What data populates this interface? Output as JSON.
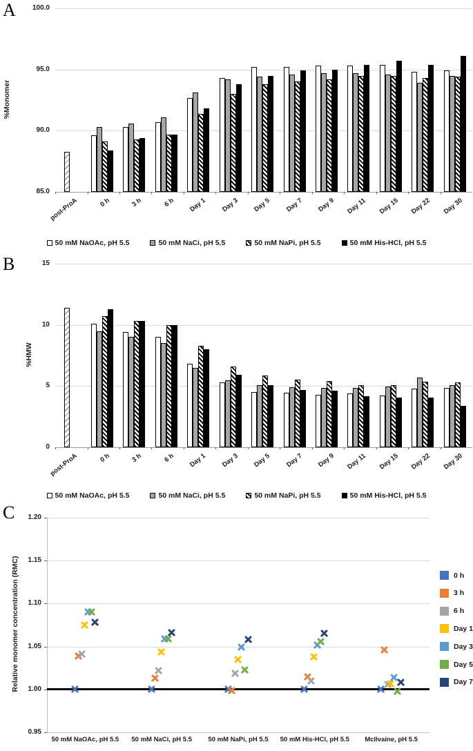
{
  "figure": {
    "background": "#ffffff",
    "grid_color": "#d9d9d9",
    "axis_color": "#9b9b9b",
    "baseline_color": "#000000"
  },
  "panels": {
    "A": {
      "label": "A",
      "chart_data": {
        "type": "bar",
        "title": "",
        "xlabel": "",
        "ylabel": "%Monomer",
        "ylim": [
          85.0,
          100.0
        ],
        "ytick_step": 5.0,
        "ytick_decimals": 1,
        "grid": true,
        "legend_position": "bottom",
        "categories": [
          "post-ProA",
          "0 h",
          "3 h",
          "6 h",
          "Day 1",
          "Day 3",
          "Day 5",
          "Day 7",
          "Day 9",
          "Day 11",
          "Day 15",
          "Day 22",
          "Day 30"
        ],
        "series": [
          {
            "name": "post-ProA",
            "style": "lighthatch",
            "in_legend": false,
            "single": true,
            "values": [
              88.3,
              null,
              null,
              null,
              null,
              null,
              null,
              null,
              null,
              null,
              null,
              null,
              null
            ]
          },
          {
            "name": "50 mM NaOAc, pH 5.5",
            "style": "white",
            "in_legend": true,
            "values": [
              null,
              89.6,
              90.3,
              90.7,
              92.7,
              94.3,
              95.2,
              95.2,
              95.3,
              95.3,
              95.4,
              94.8,
              94.9
            ]
          },
          {
            "name": "50 mM NaCi, pH 5.5",
            "style": "gray",
            "in_legend": true,
            "values": [
              null,
              90.3,
              90.6,
              91.1,
              93.1,
              94.2,
              94.4,
              94.6,
              94.7,
              94.7,
              94.6,
              93.9,
              94.5
            ]
          },
          {
            "name": "50 mM NaPi, pH 5.5",
            "style": "hatch",
            "in_legend": true,
            "values": [
              null,
              89.1,
              89.3,
              89.7,
              91.4,
              93.0,
              93.8,
              94.0,
              94.2,
              94.5,
              94.5,
              94.3,
              94.4
            ]
          },
          {
            "name": "50 mM His-HCl, pH 5.5",
            "style": "black",
            "in_legend": true,
            "values": [
              null,
              88.4,
              89.4,
              89.7,
              91.8,
              93.8,
              94.5,
              94.9,
              95.0,
              95.4,
              95.7,
              95.4,
              96.1
            ]
          }
        ]
      }
    },
    "B": {
      "label": "B",
      "chart_data": {
        "type": "bar",
        "title": "",
        "xlabel": "",
        "ylabel": "%HMW",
        "ylim": [
          0,
          15
        ],
        "ytick_step": 5,
        "ytick_decimals": 0,
        "grid": true,
        "legend_position": "bottom",
        "categories": [
          "post-ProA",
          "0 h",
          "3 h",
          "6 h",
          "Day 1",
          "Day 3",
          "Day 5",
          "Day 7",
          "Day 9",
          "Day 11",
          "Day 15",
          "Day 22",
          "Day 30"
        ],
        "series": [
          {
            "name": "post-ProA",
            "style": "lighthatch",
            "in_legend": false,
            "single": true,
            "values": [
              11.4,
              null,
              null,
              null,
              null,
              null,
              null,
              null,
              null,
              null,
              null,
              null,
              null
            ]
          },
          {
            "name": "50 mM NaOAc, pH 5.5",
            "style": "white",
            "in_legend": true,
            "values": [
              null,
              10.1,
              9.4,
              9.0,
              6.8,
              5.3,
              4.5,
              4.45,
              4.3,
              4.4,
              4.25,
              4.8,
              4.85
            ]
          },
          {
            "name": "50 mM NaCi, pH 5.5",
            "style": "gray",
            "in_legend": true,
            "values": [
              null,
              9.5,
              9.0,
              8.5,
              6.5,
              5.45,
              5.05,
              4.9,
              4.85,
              4.85,
              4.95,
              5.7,
              5.1
            ]
          },
          {
            "name": "50 mM NaPi, pH 5.5",
            "style": "hatch",
            "in_legend": true,
            "values": [
              null,
              10.7,
              10.3,
              10.0,
              8.3,
              6.6,
              5.85,
              5.55,
              5.4,
              5.1,
              5.05,
              5.35,
              5.3
            ]
          },
          {
            "name": "50 mM His-HCl, pH 5.5",
            "style": "black",
            "in_legend": true,
            "values": [
              null,
              11.3,
              10.35,
              10.0,
              8.0,
              5.9,
              5.1,
              4.7,
              4.6,
              4.2,
              4.05,
              4.05,
              3.4
            ]
          }
        ]
      }
    },
    "C": {
      "label": "C",
      "chart_data": {
        "type": "scatter",
        "title": "",
        "xlabel": "",
        "ylabel": "Relative monomer concentration (RMC)",
        "ylim": [
          0.95,
          1.2
        ],
        "ytick_step": 0.05,
        "ytick_decimals": 2,
        "grid": true,
        "baseline": 1.0,
        "legend_position": "right",
        "marker": "x",
        "categories": [
          "50 mM NaOAc, pH 5.5",
          "50 mM NaCi, pH 5.5",
          "50 mM NaPi, pH 5.5",
          "50 mM His-HCl, pH 5.5",
          "McIlvaine, pH 5.5"
        ],
        "series": [
          {
            "name": "0 h",
            "color": "#4472C4",
            "values": [
              1.0,
              1.0,
              1.0,
              1.0,
              1.0
            ]
          },
          {
            "name": "3 h",
            "color": "#ED7D31",
            "values": [
              1.039,
              1.013,
              0.999,
              1.015,
              1.046
            ]
          },
          {
            "name": "6 h",
            "color": "#A5A5A5",
            "values": [
              1.041,
              1.022,
              1.019,
              1.01,
              1.006
            ]
          },
          {
            "name": "Day 1",
            "color": "#FFC000",
            "values": [
              1.075,
              1.044,
              1.035,
              1.038,
              1.007
            ]
          },
          {
            "name": "Day 3",
            "color": "#5B9BD5",
            "values": [
              1.09,
              1.059,
              1.049,
              1.052,
              1.014
            ]
          },
          {
            "name": "Day 5",
            "color": "#70AD47",
            "values": [
              1.09,
              1.059,
              1.023,
              1.056,
              0.998
            ]
          },
          {
            "name": "Day 7",
            "color": "#264478",
            "values": [
              1.078,
              1.066,
              1.058,
              1.065,
              1.008
            ]
          }
        ]
      }
    }
  }
}
